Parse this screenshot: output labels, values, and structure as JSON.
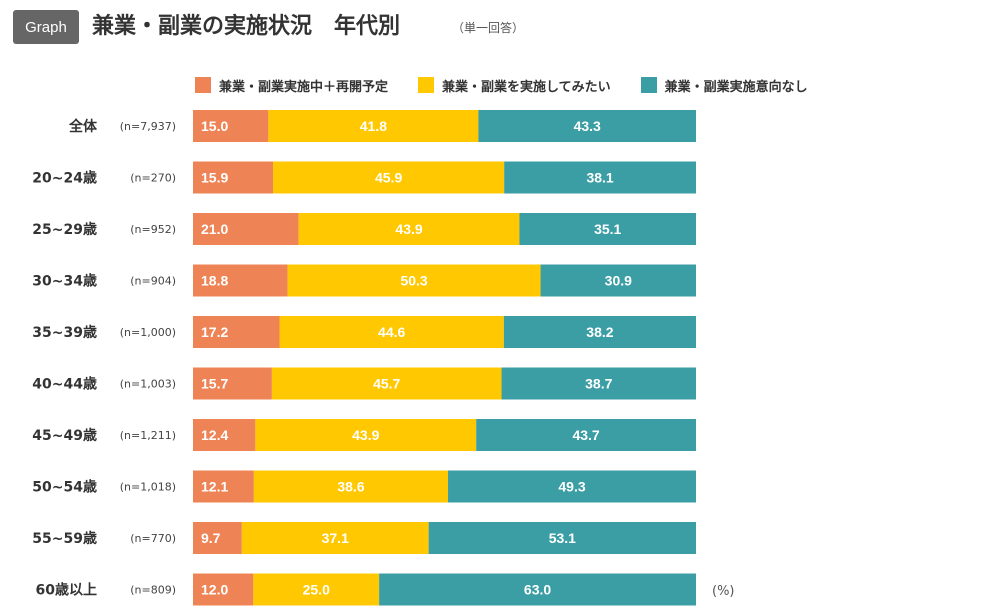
{
  "header": {
    "badge": "Graph",
    "title": "兼業・副業の実施状況　年代別",
    "subtitle": "（単一回答）"
  },
  "unit_label": "(%)",
  "colors": {
    "series_1": "#ee8456",
    "series_2": "#ffc800",
    "series_3": "#3b9ea5"
  },
  "chart_data": {
    "type": "bar",
    "orientation": "horizontal",
    "stacked": true,
    "normalized": true,
    "xlim": [
      0,
      100
    ],
    "grid": false,
    "legend_position": "top",
    "categories": [
      "全体",
      "20~24歳",
      "25~29歳",
      "30~34歳",
      "35~39歳",
      "40~44歳",
      "45~49歳",
      "50~54歳",
      "55~59歳",
      "60歳以上"
    ],
    "sample_sizes": [
      "(n=7,937)",
      "(n=270)",
      "(n=952)",
      "(n=904)",
      "(n=1,000)",
      "(n=1,003)",
      "(n=1,211)",
      "(n=1,018)",
      "(n=770)",
      "(n=809)"
    ],
    "series": [
      {
        "name": "兼業・副業実施中＋再開予定",
        "values": [
          15.0,
          15.9,
          21.0,
          18.8,
          17.2,
          15.7,
          12.4,
          12.1,
          9.7,
          12.0
        ]
      },
      {
        "name": "兼業・副業を実施してみたい",
        "values": [
          41.8,
          45.9,
          43.9,
          50.3,
          44.6,
          45.7,
          43.9,
          38.6,
          37.1,
          25.0
        ]
      },
      {
        "name": "兼業・副業実施意向なし",
        "values": [
          43.3,
          38.1,
          35.1,
          30.9,
          38.2,
          38.7,
          43.7,
          49.3,
          53.1,
          63.0
        ]
      }
    ]
  }
}
